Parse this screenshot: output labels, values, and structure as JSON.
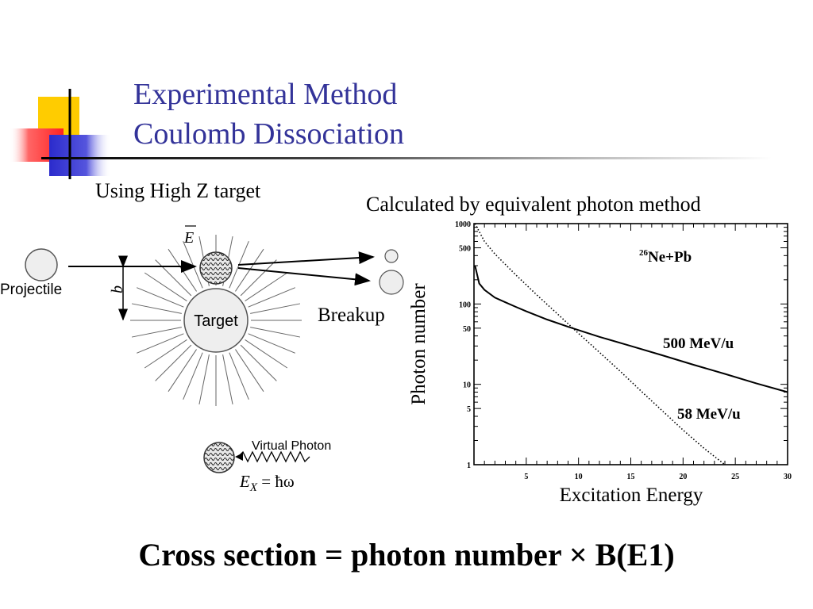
{
  "title": {
    "line1": "Experimental Method",
    "line2": "Coulomb Dissociation"
  },
  "captions": {
    "left": "Using High Z target",
    "right": "Calculated by equivalent photon method"
  },
  "diagram": {
    "projectile_label": "Projectile",
    "impact_label": "b",
    "field_label": "E",
    "target_label": "Target",
    "breakup_label": "Breakup",
    "virtual_photon_label": "Virtual Photon",
    "energy_symbol": "E",
    "energy_subscript": "X",
    "energy_rhs": " = ħω"
  },
  "formula": {
    "text": "Cross section = photon number × B(E1)"
  },
  "colors": {
    "title": "#333399",
    "deco_yellow": "#ffcc00",
    "deco_red": "#ff3333",
    "deco_blue": "#3333cc"
  },
  "chart_data": {
    "type": "line",
    "title": "",
    "annotation": {
      "mass_number": "26",
      "reaction": "Ne+Pb"
    },
    "xlabel": "Excitation Energy",
    "ylabel": "Photon number",
    "xlim": [
      0,
      30
    ],
    "ylim": [
      1,
      1000
    ],
    "yscale": "log",
    "x_ticks": [
      5,
      10,
      15,
      20,
      25,
      30
    ],
    "y_ticks": [
      1,
      5,
      10,
      50,
      100,
      500,
      1000
    ],
    "grid": false,
    "series": [
      {
        "name": "500 MeV/u",
        "style": "solid",
        "x": [
          0.1,
          0.5,
          1,
          2,
          3,
          4,
          5,
          7,
          9,
          12,
          15,
          18,
          21,
          24,
          27,
          30
        ],
        "y": [
          300,
          180,
          150,
          120,
          105,
          92,
          81,
          64,
          52,
          39,
          30,
          23,
          17.5,
          13.5,
          10.3,
          8
        ]
      },
      {
        "name": "58 MeV/u",
        "style": "dotted",
        "x": [
          0.1,
          1,
          2,
          4,
          6,
          8,
          10,
          12,
          14,
          16,
          18,
          20,
          22,
          24
        ],
        "y": [
          1000,
          600,
          420,
          230,
          130,
          75,
          43,
          25,
          14.5,
          8.2,
          4.7,
          2.7,
          1.6,
          1
        ]
      }
    ]
  }
}
